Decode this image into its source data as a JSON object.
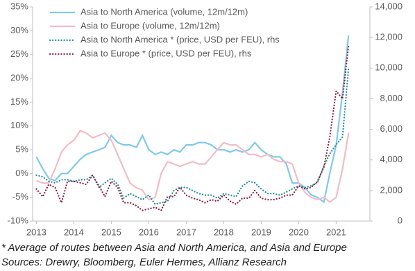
{
  "chart_data": {
    "type": "line",
    "x": [
      2013,
      2013.17,
      2013.33,
      2013.5,
      2013.67,
      2013.83,
      2014,
      2014.17,
      2014.33,
      2014.5,
      2014.67,
      2014.83,
      2015,
      2015.17,
      2015.33,
      2015.5,
      2015.67,
      2015.83,
      2016,
      2016.17,
      2016.33,
      2016.5,
      2016.67,
      2016.83,
      2017,
      2017.17,
      2017.33,
      2017.5,
      2017.67,
      2017.83,
      2018,
      2018.17,
      2018.33,
      2018.5,
      2018.67,
      2018.83,
      2019,
      2019.17,
      2019.33,
      2019.5,
      2019.67,
      2019.83,
      2020,
      2020.17,
      2020.33,
      2020.5,
      2020.67,
      2020.83,
      2021,
      2021.17,
      2021.33
    ],
    "series": [
      {
        "name": "Asia to North America (volume, 12m/12m)",
        "color": "#7fc9ec",
        "style": "solid",
        "values": [
          3.5,
          1,
          -1,
          -1.5,
          0,
          0,
          1.5,
          3,
          4,
          4.5,
          5,
          5.5,
          8,
          6.5,
          6,
          6,
          5.5,
          8,
          5,
          4,
          4.5,
          4,
          5,
          4.5,
          6,
          6,
          6.5,
          6.5,
          6,
          5,
          5,
          4.5,
          5,
          4.5,
          5,
          6.5,
          5,
          4,
          3.5,
          3.5,
          2,
          -2,
          -2,
          -3,
          -4.5,
          -5,
          -6,
          0,
          6,
          17,
          29
        ]
      },
      {
        "name": "Asia to Europe (volume, 12m/12m)",
        "color": "#f2bcc6",
        "style": "solid",
        "values": [
          -1.5,
          -2,
          -2,
          1,
          4.5,
          6,
          7,
          9,
          8.5,
          7.5,
          8,
          8.5,
          7,
          4,
          1,
          -2,
          -3,
          -3.5,
          -5.5,
          -5,
          0,
          2.5,
          2,
          1.5,
          2,
          2.5,
          2,
          2,
          3.5,
          5,
          6.5,
          6,
          6,
          5,
          4,
          4,
          3.5,
          4,
          3,
          2.5,
          2.5,
          2,
          -2,
          -4,
          -5,
          -5.5,
          -5,
          -6,
          -5,
          1,
          8.5
        ]
      },
      {
        "name": "Asia to North America * (price, USD per FEU), rhs",
        "color": "#1b8a9b",
        "style": "dotted",
        "axis": "y2",
        "values": [
          3000,
          2900,
          2600,
          2500,
          2700,
          2700,
          2600,
          2700,
          2700,
          3000,
          2200,
          2500,
          2800,
          2400,
          1500,
          1800,
          1600,
          1400,
          1700,
          1100,
          1200,
          1300,
          2000,
          2200,
          2200,
          2000,
          1800,
          1700,
          1700,
          1500,
          1800,
          1700,
          1600,
          2300,
          2600,
          2500,
          2100,
          1800,
          1800,
          1700,
          1900,
          2100,
          2300,
          2200,
          2300,
          2500,
          3600,
          4400,
          5000,
          5500,
          10000
        ]
      },
      {
        "name": "Asia to Europe * (price, USD per FEU), rhs",
        "color": "#8b1c3c",
        "style": "dotted",
        "axis": "y2",
        "values": [
          2100,
          1600,
          2400,
          2200,
          1200,
          2600,
          2600,
          2500,
          2400,
          3000,
          2300,
          1600,
          2600,
          2200,
          1200,
          1200,
          1000,
          700,
          800,
          900,
          700,
          1600,
          1600,
          2200,
          1700,
          1500,
          1400,
          1200,
          1400,
          1300,
          1700,
          1300,
          1100,
          1500,
          1500,
          2000,
          1500,
          1400,
          1400,
          1500,
          1700,
          1700,
          2300,
          2100,
          2200,
          2600,
          3500,
          5500,
          8500,
          8000,
          11500
        ]
      }
    ],
    "xlim": [
      2012.9,
      2021.9
    ],
    "xticks": [
      2013,
      2014,
      2015,
      2016,
      2017,
      2018,
      2019,
      2020,
      2021
    ],
    "ylim": [
      -10,
      35
    ],
    "yticks": [
      {
        "value": -10,
        "label": "-10%"
      },
      {
        "value": -5,
        "label": "-5%"
      },
      {
        "value": 0,
        "label": "0%"
      },
      {
        "value": 5,
        "label": "5%"
      },
      {
        "value": 10,
        "label": "10%"
      },
      {
        "value": 15,
        "label": "15%"
      },
      {
        "value": 20,
        "label": "20%"
      },
      {
        "value": 25,
        "label": "25%"
      },
      {
        "value": 30,
        "label": "30%"
      },
      {
        "value": 35,
        "label": "35%"
      }
    ],
    "y2lim": [
      0,
      14000
    ],
    "y2ticks": [
      0,
      {
        "value": 2000,
        "label": "2,000"
      },
      {
        "value": 4000,
        "label": "4,000"
      },
      {
        "value": 6000,
        "label": "6,000"
      },
      {
        "value": 8000,
        "label": "8,000"
      },
      {
        "value": 10000,
        "label": "10,000"
      },
      {
        "value": 12000,
        "label": "12,000"
      },
      {
        "value": 14000,
        "label": "14,000"
      }
    ],
    "legend": "top-left",
    "footnote": "* Average of routes between Asia and North America, and Asia and Europe",
    "source": "Sources: Drewry, Bloomberg, Euler Hermes, Allianz Research"
  }
}
